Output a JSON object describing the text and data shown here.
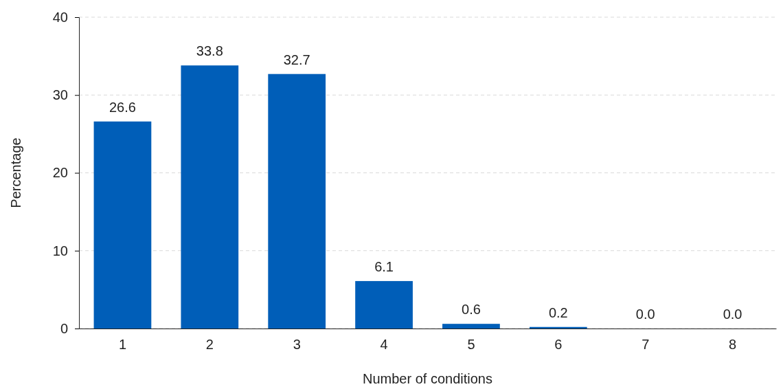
{
  "chart_data": {
    "type": "bar",
    "xlabel": "Number of conditions",
    "ylabel": "Percentage",
    "categories": [
      "1",
      "2",
      "3",
      "4",
      "5",
      "6",
      "7",
      "8"
    ],
    "values": [
      26.6,
      33.8,
      32.7,
      6.1,
      0.6,
      0.2,
      0.0,
      0.0
    ],
    "value_labels": [
      "26.6",
      "33.8",
      "32.7",
      "6.1",
      "0.6",
      "0.2",
      "0.0",
      "0.0"
    ],
    "color": "#005eb8",
    "ylim": [
      0,
      40
    ],
    "yticks": [
      0,
      10,
      20,
      30,
      40
    ],
    "grid": "y"
  }
}
